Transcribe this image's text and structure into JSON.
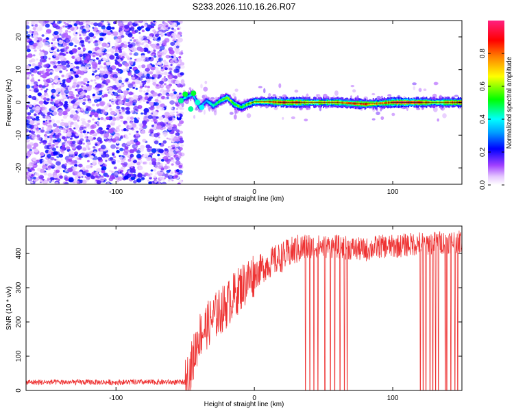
{
  "figure": {
    "title": "S233.2026.110.16.26.R07"
  },
  "chart_data": [
    {
      "type": "heatmap",
      "title": "S233.2026.110.16.26.R07",
      "xlabel": "Height of straight line (km)",
      "ylabel": "Frequency (Hz)",
      "xlim": [
        -165,
        150
      ],
      "ylim": [
        -25,
        25
      ],
      "xticks": [
        -100,
        0,
        100
      ],
      "yticks": [
        -20,
        -10,
        0,
        10,
        20
      ],
      "noise_region_x": [
        -165,
        -55
      ],
      "track": {
        "x": [
          -55,
          -50,
          -45,
          -40,
          -35,
          -30,
          -25,
          -20,
          -15,
          -10,
          -5,
          0,
          10,
          20,
          30,
          40,
          50,
          60,
          70,
          80,
          90,
          100,
          110,
          120,
          130,
          140,
          150
        ],
        "freq": [
          0.5,
          1.5,
          2.5,
          -1.5,
          0.5,
          -1.0,
          0.5,
          1.5,
          -0.5,
          -1.5,
          -0.5,
          0.2,
          0.2,
          0.0,
          0.0,
          0.0,
          0.0,
          0.0,
          -0.3,
          -0.5,
          -0.3,
          0.0,
          0.0,
          0.0,
          0.0,
          0.0,
          0.0
        ],
        "amplitude": [
          0.3,
          0.35,
          0.4,
          0.3,
          0.35,
          0.45,
          0.55,
          0.6,
          0.55,
          0.5,
          0.55,
          0.6,
          0.7,
          0.85,
          0.85,
          0.7,
          0.7,
          0.75,
          0.75,
          0.8,
          0.7,
          0.85,
          0.95,
          0.9,
          0.6,
          0.75,
          0.85
        ]
      },
      "colorbar": {
        "label": "Normalized spectral amplitude",
        "range": [
          0,
          1
        ],
        "ticks": [
          0.0,
          0.2,
          0.4,
          0.6,
          0.8
        ],
        "tick_labels": [
          "0.0",
          "0.2",
          "0.4",
          "0.6",
          "0.8"
        ]
      }
    },
    {
      "type": "line",
      "xlabel": "Height of straight line (km)",
      "ylabel": "SNR (10 * v/v)",
      "xlim": [
        -165,
        150
      ],
      "ylim": [
        0,
        480
      ],
      "xticks": [
        -100,
        0,
        100
      ],
      "yticks": [
        0,
        100,
        200,
        300,
        400
      ],
      "color": "#ee3333",
      "envelope": {
        "x": [
          -165,
          -50,
          -45,
          -40,
          -30,
          -20,
          -10,
          0,
          10,
          20,
          30,
          40,
          60,
          80,
          90,
          100,
          110,
          120,
          130,
          140,
          150
        ],
        "y": [
          20,
          20,
          80,
          160,
          210,
          250,
          300,
          340,
          370,
          390,
          410,
          420,
          420,
          410,
          420,
          420,
          425,
          430,
          430,
          435,
          435
        ]
      },
      "dropouts": [
        37,
        40,
        43,
        46,
        51,
        55,
        58,
        62,
        65,
        67,
        120,
        122,
        124,
        127,
        129,
        131,
        133,
        138,
        139,
        142,
        145,
        147
      ]
    }
  ]
}
